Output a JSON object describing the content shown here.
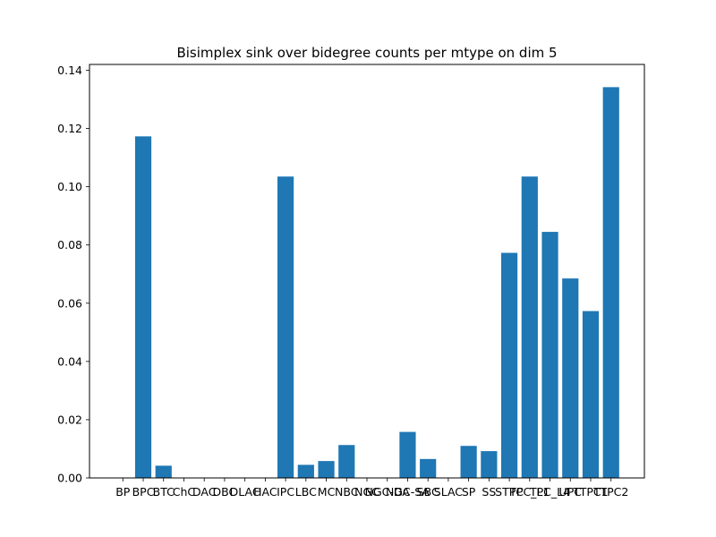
{
  "chart_data": {
    "type": "bar",
    "title": "Bisimplex sink over bidegree counts per mtype on dim 5",
    "xlabel": "",
    "ylabel": "",
    "ylim": [
      0,
      0.142
    ],
    "yticks": [
      0.0,
      0.02,
      0.04,
      0.06,
      0.08,
      0.1,
      0.12,
      0.14
    ],
    "ytick_labels": [
      "0.00",
      "0.02",
      "0.04",
      "0.06",
      "0.08",
      "0.10",
      "0.12",
      "0.14"
    ],
    "grid": false,
    "bar_color": "#1f77b4",
    "categories": [
      "BP",
      "BPC",
      "BTC",
      "ChC",
      "DAC",
      "DBC",
      "DLAC",
      "HAC",
      "IPC",
      "LBC",
      "MC",
      "NBC",
      "NGC",
      "NGC-DA",
      "NGC-SA",
      "SBC",
      "SLAC",
      "SP",
      "SS",
      "STPC",
      "TPC_L1",
      "TPC_L4",
      "UPC",
      "TTPC1",
      "TTPC2"
    ],
    "values": [
      0,
      0.1173,
      0.0042,
      0,
      0,
      0,
      0,
      0,
      0.1035,
      0.0045,
      0.0058,
      0.0113,
      0,
      0,
      0.0158,
      0.0065,
      0,
      0.011,
      0.0092,
      0.0773,
      0.1035,
      0.0845,
      0.0685,
      0.0573,
      0.1342
    ]
  }
}
